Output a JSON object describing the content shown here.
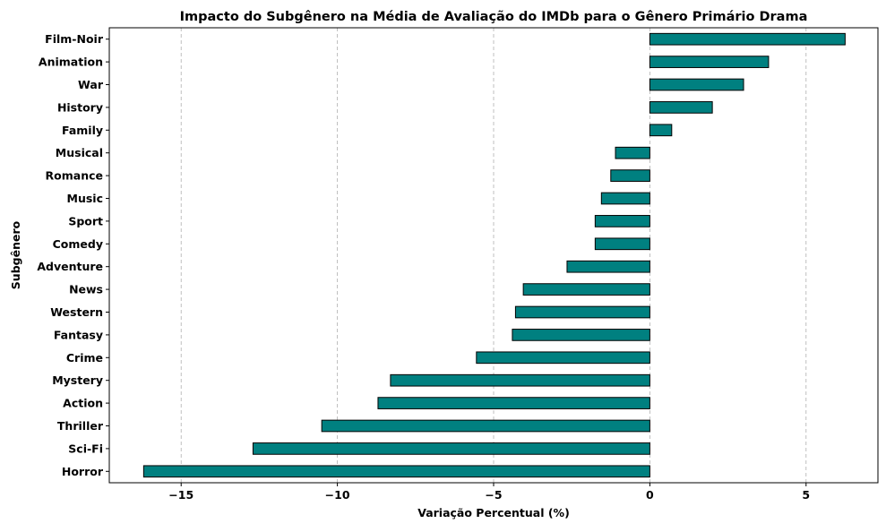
{
  "chart_data": {
    "type": "bar",
    "orientation": "horizontal",
    "title": "Impacto do Subgênero na Média de Avaliação do IMDb para o Gênero Primário Drama",
    "xlabel": "Variação Percentual (%)",
    "ylabel": "Subgênero",
    "categories": [
      "Film-Noir",
      "Animation",
      "War",
      "History",
      "Family",
      "Musical",
      "Romance",
      "Music",
      "Sport",
      "Comedy",
      "Adventure",
      "News",
      "Western",
      "Fantasy",
      "Crime",
      "Mystery",
      "Action",
      "Thriller",
      "Sci-Fi",
      "Horror"
    ],
    "values": [
      6.25,
      3.8,
      3.0,
      2.0,
      0.7,
      -1.1,
      -1.25,
      -1.55,
      -1.75,
      -1.75,
      -2.65,
      -4.05,
      -4.3,
      -4.4,
      -5.55,
      -8.3,
      -8.7,
      -10.5,
      -12.7,
      -16.2
    ],
    "xlim": [
      -17.3,
      7.3
    ],
    "xticks": [
      -15,
      -10,
      -5,
      0,
      5
    ],
    "xtick_labels": [
      "−15",
      "−10",
      "−5",
      "0",
      "5"
    ],
    "grid": {
      "x": true,
      "y": false,
      "style": "dashed"
    },
    "legend": "none",
    "colors": {
      "bar_fill": "#008080",
      "bar_edge": "#000000",
      "grid": "#b0b0b0"
    }
  }
}
